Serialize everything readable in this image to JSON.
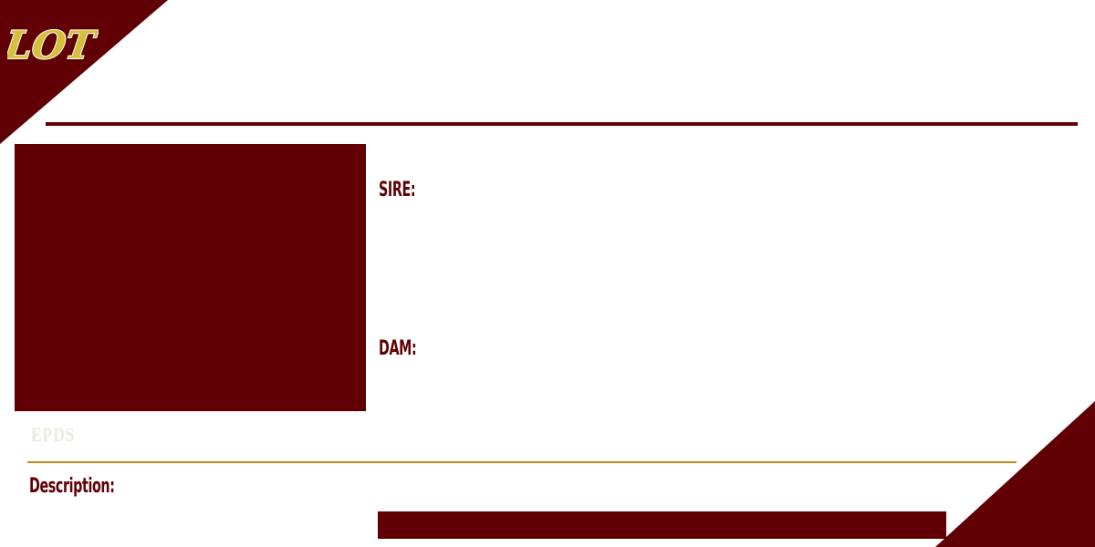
{
  "colors": {
    "maroon": "#600004",
    "gold": "#d4c03a",
    "gold_rule": "#c08a1e",
    "faint_label": "#ece9df"
  },
  "badge": {
    "text": "LOT"
  },
  "fields": {
    "sire_label": "SIRE:",
    "dam_label": "DAM:",
    "epds_label": "EPDS",
    "description_label": "Description:"
  }
}
